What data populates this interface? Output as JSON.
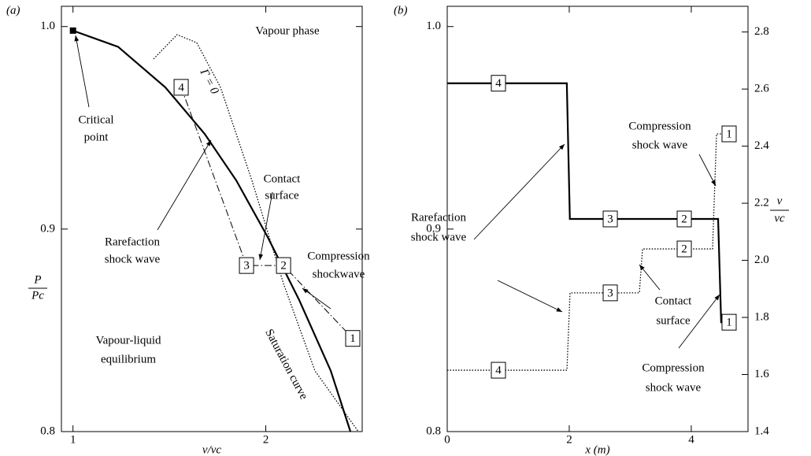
{
  "chart_data": [
    {
      "type": "line",
      "panel_label": "(a)",
      "xlabel": "v/vc",
      "ylabel": {
        "numerator": "P",
        "denominator": "Pc"
      },
      "xlim": [
        0.94,
        2.5
      ],
      "ylim": [
        0.8,
        1.01
      ],
      "xticks": [
        1,
        2
      ],
      "yticks": [
        0.8,
        0.9,
        {
          "value": 1.0,
          "label": "1.0"
        }
      ],
      "color": "#000000",
      "series": [
        {
          "style": "solid",
          "x": [
            1.0,
            1.234,
            1.479,
            1.683,
            1.847,
            2.01,
            2.173,
            2.337,
            2.439
          ],
          "values": [
            0.998,
            0.99,
            0.97,
            0.947,
            0.924,
            0.896,
            0.865,
            0.83,
            0.8
          ]
        },
        {
          "style": "dotted",
          "x": [
            1.418,
            1.54,
            1.642,
            1.765,
            1.928,
            2.092,
            2.255,
            2.48
          ],
          "values": [
            0.984,
            0.996,
            0.992,
            0.97,
            0.924,
            0.873,
            0.83,
            0.8
          ]
        },
        {
          "style": "dashdot",
          "x": [
            1.561,
            1.9,
            2.092,
            2.451
          ],
          "values": [
            0.97,
            0.882,
            0.882,
            0.846
          ],
          "state_labels": [
            "4",
            "3",
            "2",
            "1"
          ]
        }
      ],
      "marker": {
        "x": 1.0,
        "value": 0.998
      },
      "annotations": [
        {
          "lines": [
            "Vapour phase"
          ]
        },
        {
          "lines": [
            "Critical",
            "point"
          ]
        },
        {
          "lines": [
            "Rarefaction",
            "shock wave"
          ]
        },
        {
          "lines": [
            "Contact",
            "surface"
          ]
        },
        {
          "lines": [
            "Compression",
            "shockwave"
          ]
        },
        {
          "lines": [
            "Vapour-liquid",
            "equilibrium"
          ]
        },
        {
          "lines": [
            "Saturation curve"
          ]
        },
        {
          "lines": [
            "Γ = 0"
          ]
        }
      ]
    },
    {
      "type": "line",
      "panel_label": "(b)",
      "xlabel": "x (m)",
      "y2label": {
        "numerator": "v",
        "denominator": "vc"
      },
      "xlim": [
        0,
        4.93
      ],
      "ylim": [
        0.8,
        1.01
      ],
      "y2lim": [
        1.4,
        2.89
      ],
      "xticks": [
        0,
        2,
        4
      ],
      "yticks": [
        0.8,
        0.9,
        {
          "value": 1.0,
          "label": "1.0"
        }
      ],
      "y2ticks": [
        1.4,
        1.6,
        1.8,
        {
          "value": 2.0,
          "label": "2.0"
        },
        2.2,
        2.4,
        2.6,
        2.8
      ],
      "color": "#000000",
      "series": [
        {
          "style": "solid",
          "x": [
            0,
            1.96,
            2.01,
            4.44,
            4.49,
            4.74
          ],
          "values": [
            0.972,
            0.972,
            0.905,
            0.905,
            0.854,
            0.854
          ],
          "state_x": [
            0.839,
            2.672,
            3.885,
            4.62
          ],
          "state_values": [
            0.972,
            0.905,
            0.905,
            0.854
          ],
          "state_labels": [
            "4",
            "3",
            "2",
            "1"
          ]
        },
        {
          "style": "dotted",
          "axis": "y2",
          "x": [
            0,
            1.962,
            2.013,
            3.149,
            3.201,
            4.349,
            4.414,
            4.607
          ],
          "values": [
            1.615,
            1.615,
            1.886,
            1.886,
            2.04,
            2.04,
            2.443,
            2.443
          ],
          "state_x": [
            0.839,
            2.672,
            3.885,
            4.62
          ],
          "state_values": [
            1.615,
            1.886,
            2.04,
            2.443
          ],
          "state_labels": [
            "4",
            "3",
            "2",
            "1"
          ]
        }
      ],
      "annotations": [
        {
          "lines": [
            "Compression",
            "shock wave"
          ]
        },
        {
          "lines": [
            "Rarefaction",
            "shock wave"
          ]
        },
        {
          "lines": [
            "Contact",
            "surface"
          ]
        },
        {
          "lines": [
            "Compression",
            "shock wave"
          ]
        }
      ]
    }
  ]
}
